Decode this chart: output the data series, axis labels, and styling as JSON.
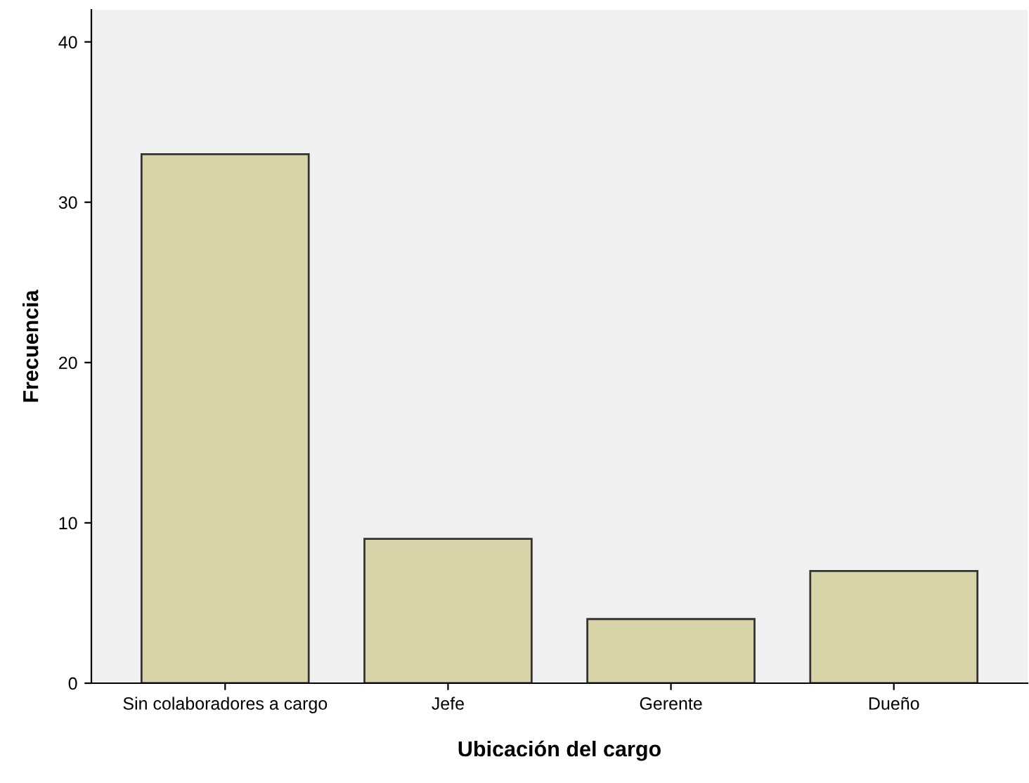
{
  "chart_data": {
    "type": "bar",
    "xlabel": "Ubicación del cargo",
    "ylabel": "Frecuencia",
    "categories": [
      "Sin colaboradores a cargo",
      "Jefe",
      "Gerente",
      "Dueño"
    ],
    "values": [
      33,
      9,
      4,
      7
    ],
    "color": "#d9d4a8",
    "ylim": [
      0,
      42
    ],
    "yticks": [
      0,
      10,
      20,
      30,
      40
    ],
    "grid": false
  }
}
